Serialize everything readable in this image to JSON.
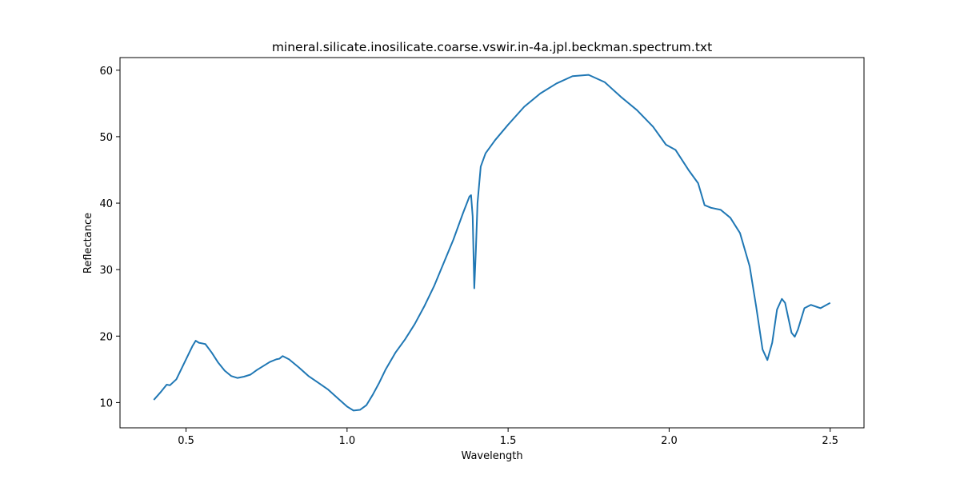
{
  "chart_data": {
    "type": "line",
    "title": "mineral.silicate.inosilicate.coarse.vswir.in-4a.jpl.beckman.spectrum.txt",
    "x_label": "Wavelength",
    "y_label": "Reflectance",
    "x": [
      0.4,
      0.42,
      0.44,
      0.45,
      0.47,
      0.49,
      0.51,
      0.52,
      0.53,
      0.54,
      0.56,
      0.58,
      0.6,
      0.62,
      0.64,
      0.66,
      0.68,
      0.7,
      0.72,
      0.74,
      0.76,
      0.78,
      0.79,
      0.8,
      0.82,
      0.85,
      0.88,
      0.91,
      0.94,
      0.97,
      1.0,
      1.02,
      1.04,
      1.06,
      1.08,
      1.1,
      1.12,
      1.15,
      1.18,
      1.21,
      1.24,
      1.27,
      1.3,
      1.33,
      1.36,
      1.38,
      1.385,
      1.39,
      1.395,
      1.4,
      1.405,
      1.415,
      1.43,
      1.46,
      1.5,
      1.55,
      1.6,
      1.65,
      1.7,
      1.75,
      1.8,
      1.85,
      1.9,
      1.95,
      1.99,
      2.02,
      2.06,
      2.09,
      2.11,
      2.13,
      2.16,
      2.19,
      2.22,
      2.25,
      2.27,
      2.29,
      2.305,
      2.32,
      2.335,
      2.35,
      2.36,
      2.38,
      2.39,
      2.4,
      2.42,
      2.44,
      2.47,
      2.5
    ],
    "series": [
      {
        "name": "Reflectance",
        "color": "#1f77b4",
        "values": [
          10.4,
          11.5,
          12.7,
          12.6,
          13.5,
          15.5,
          17.5,
          18.5,
          19.3,
          19.0,
          18.8,
          17.5,
          16.0,
          14.8,
          14.0,
          13.7,
          13.9,
          14.2,
          14.9,
          15.5,
          16.1,
          16.5,
          16.6,
          17.0,
          16.5,
          15.3,
          14.0,
          13.0,
          12.0,
          10.7,
          9.4,
          8.8,
          8.9,
          9.6,
          11.2,
          13.0,
          15.0,
          17.5,
          19.5,
          21.8,
          24.5,
          27.5,
          31.0,
          34.5,
          38.5,
          41.0,
          41.2,
          38.0,
          27.2,
          33.0,
          40.0,
          45.5,
          47.5,
          49.5,
          51.8,
          54.5,
          56.5,
          58.0,
          59.1,
          59.3,
          58.2,
          56.0,
          54.0,
          51.5,
          48.8,
          48.0,
          45.0,
          43.0,
          39.7,
          39.3,
          39.0,
          37.8,
          35.5,
          30.5,
          24.5,
          18.0,
          16.4,
          19.0,
          24.0,
          25.6,
          25.0,
          20.5,
          19.9,
          21.0,
          24.2,
          24.7,
          24.2,
          25.0
        ]
      }
    ],
    "xlim": [
      0.295,
      2.605
    ],
    "ylim": [
      6.2,
      61.9
    ],
    "xticks": [
      0.5,
      {
        "value": 1,
        "label": "1.0"
      },
      1.5,
      {
        "value": 2,
        "label": "2.0"
      },
      2.5
    ],
    "yticks": [
      10,
      20,
      30,
      40,
      50,
      60
    ],
    "grid": false
  }
}
